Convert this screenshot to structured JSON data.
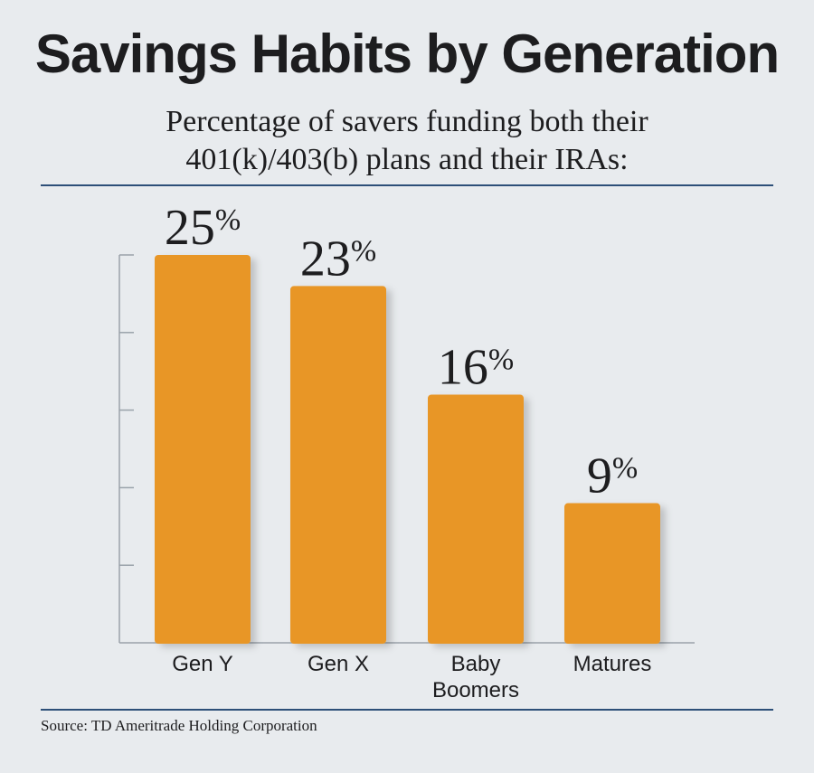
{
  "chart_data": {
    "type": "bar",
    "title": "Savings Habits by Generation",
    "subtitle_lines": [
      "Percentage of savers funding both their",
      "401(k)/403(b) plans and their IRAs:"
    ],
    "categories": [
      [
        "Gen Y"
      ],
      [
        "Gen X"
      ],
      [
        "Baby",
        "Boomers"
      ],
      [
        "Matures"
      ]
    ],
    "values": [
      25,
      23,
      16,
      9
    ],
    "value_suffix": "%",
    "ylim": [
      0,
      25
    ],
    "yticks_count": 5,
    "grid": false,
    "source": "Source: TD Ameritrade Holding Corporation",
    "colors": {
      "bar": "#e89628",
      "axis": "#9aa2aa",
      "rule": "#2d4f78",
      "background": "#e8ebee"
    }
  }
}
